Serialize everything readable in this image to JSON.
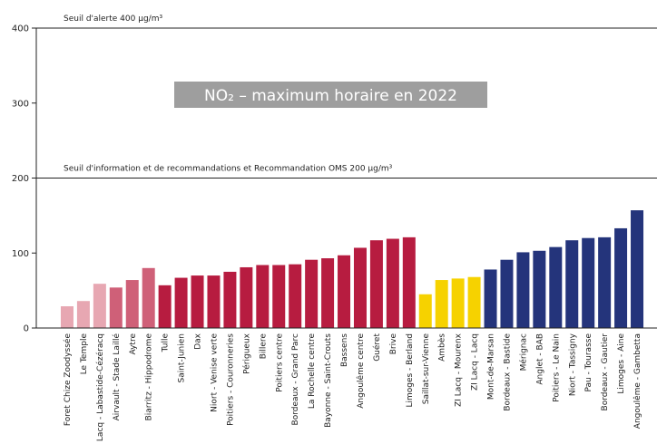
{
  "chart_data": {
    "type": "bar",
    "title": "NO₂ – maximum horaire en 2022",
    "title_bg": "#9e9e9e",
    "ylim": [
      0,
      400
    ],
    "yticks": [
      0,
      100,
      200,
      300,
      400
    ],
    "reference_lines": [
      {
        "value": 400,
        "label": "Seuil d'alerte 400 µg/m³"
      },
      {
        "value": 200,
        "label": "Seuil d'information et de recommandations et Recommandation OMS 200 µg/m³"
      }
    ],
    "colors": {
      "light_pink": "#e7a7b2",
      "pink": "#cf6078",
      "crimson": "#b71c40",
      "yellow": "#f6d200",
      "navy": "#24347b"
    },
    "categories": [
      "Foret Chize Zoodyssée",
      "Le Temple",
      "Lacq - Labastide-Cézéracq",
      "Airvault - Stade Laillé",
      "Aytre",
      "Biarritz - Hippodrome",
      "Tulle",
      "Saint-Junien",
      "Dax",
      "Niort - Venise verte",
      "Poitiers - Couronneries",
      "Périgueux",
      "Billere",
      "Poitiers centre",
      "Bordeaux - Grand Parc",
      "La Rochelle centre",
      "Bayonne - Saint-Crouts",
      "Bassens",
      "Angoulême centre",
      "Guéret",
      "Brive",
      "Limoges - Berland",
      "Saillat-sur-Vienne",
      "Ambès",
      "ZI Lacq - Mourenx",
      "ZI Lacq - Lacq",
      "Mont-de-Marsan",
      "Bordeaux - Bastide",
      "Mérignac",
      "Anglet - BAB",
      "Poitiers - Le Nain",
      "Niort - Tassigny",
      "Pau - Tourasse",
      "Bordeaux - Gautier",
      "Limoges - Aine",
      "Angoulême - Gambetta"
    ],
    "values": [
      29,
      36,
      59,
      54,
      64,
      80,
      57,
      67,
      70,
      70,
      75,
      81,
      84,
      84,
      85,
      91,
      93,
      97,
      107,
      117,
      119,
      121,
      45,
      64,
      66,
      68,
      78,
      91,
      101,
      103,
      108,
      117,
      120,
      121,
      133,
      157
    ],
    "bar_colors": [
      "light_pink",
      "light_pink",
      "light_pink",
      "pink",
      "pink",
      "pink",
      "crimson",
      "crimson",
      "crimson",
      "crimson",
      "crimson",
      "crimson",
      "crimson",
      "crimson",
      "crimson",
      "crimson",
      "crimson",
      "crimson",
      "crimson",
      "crimson",
      "crimson",
      "crimson",
      "yellow",
      "yellow",
      "yellow",
      "yellow",
      "navy",
      "navy",
      "navy",
      "navy",
      "navy",
      "navy",
      "navy",
      "navy",
      "navy",
      "navy"
    ]
  }
}
